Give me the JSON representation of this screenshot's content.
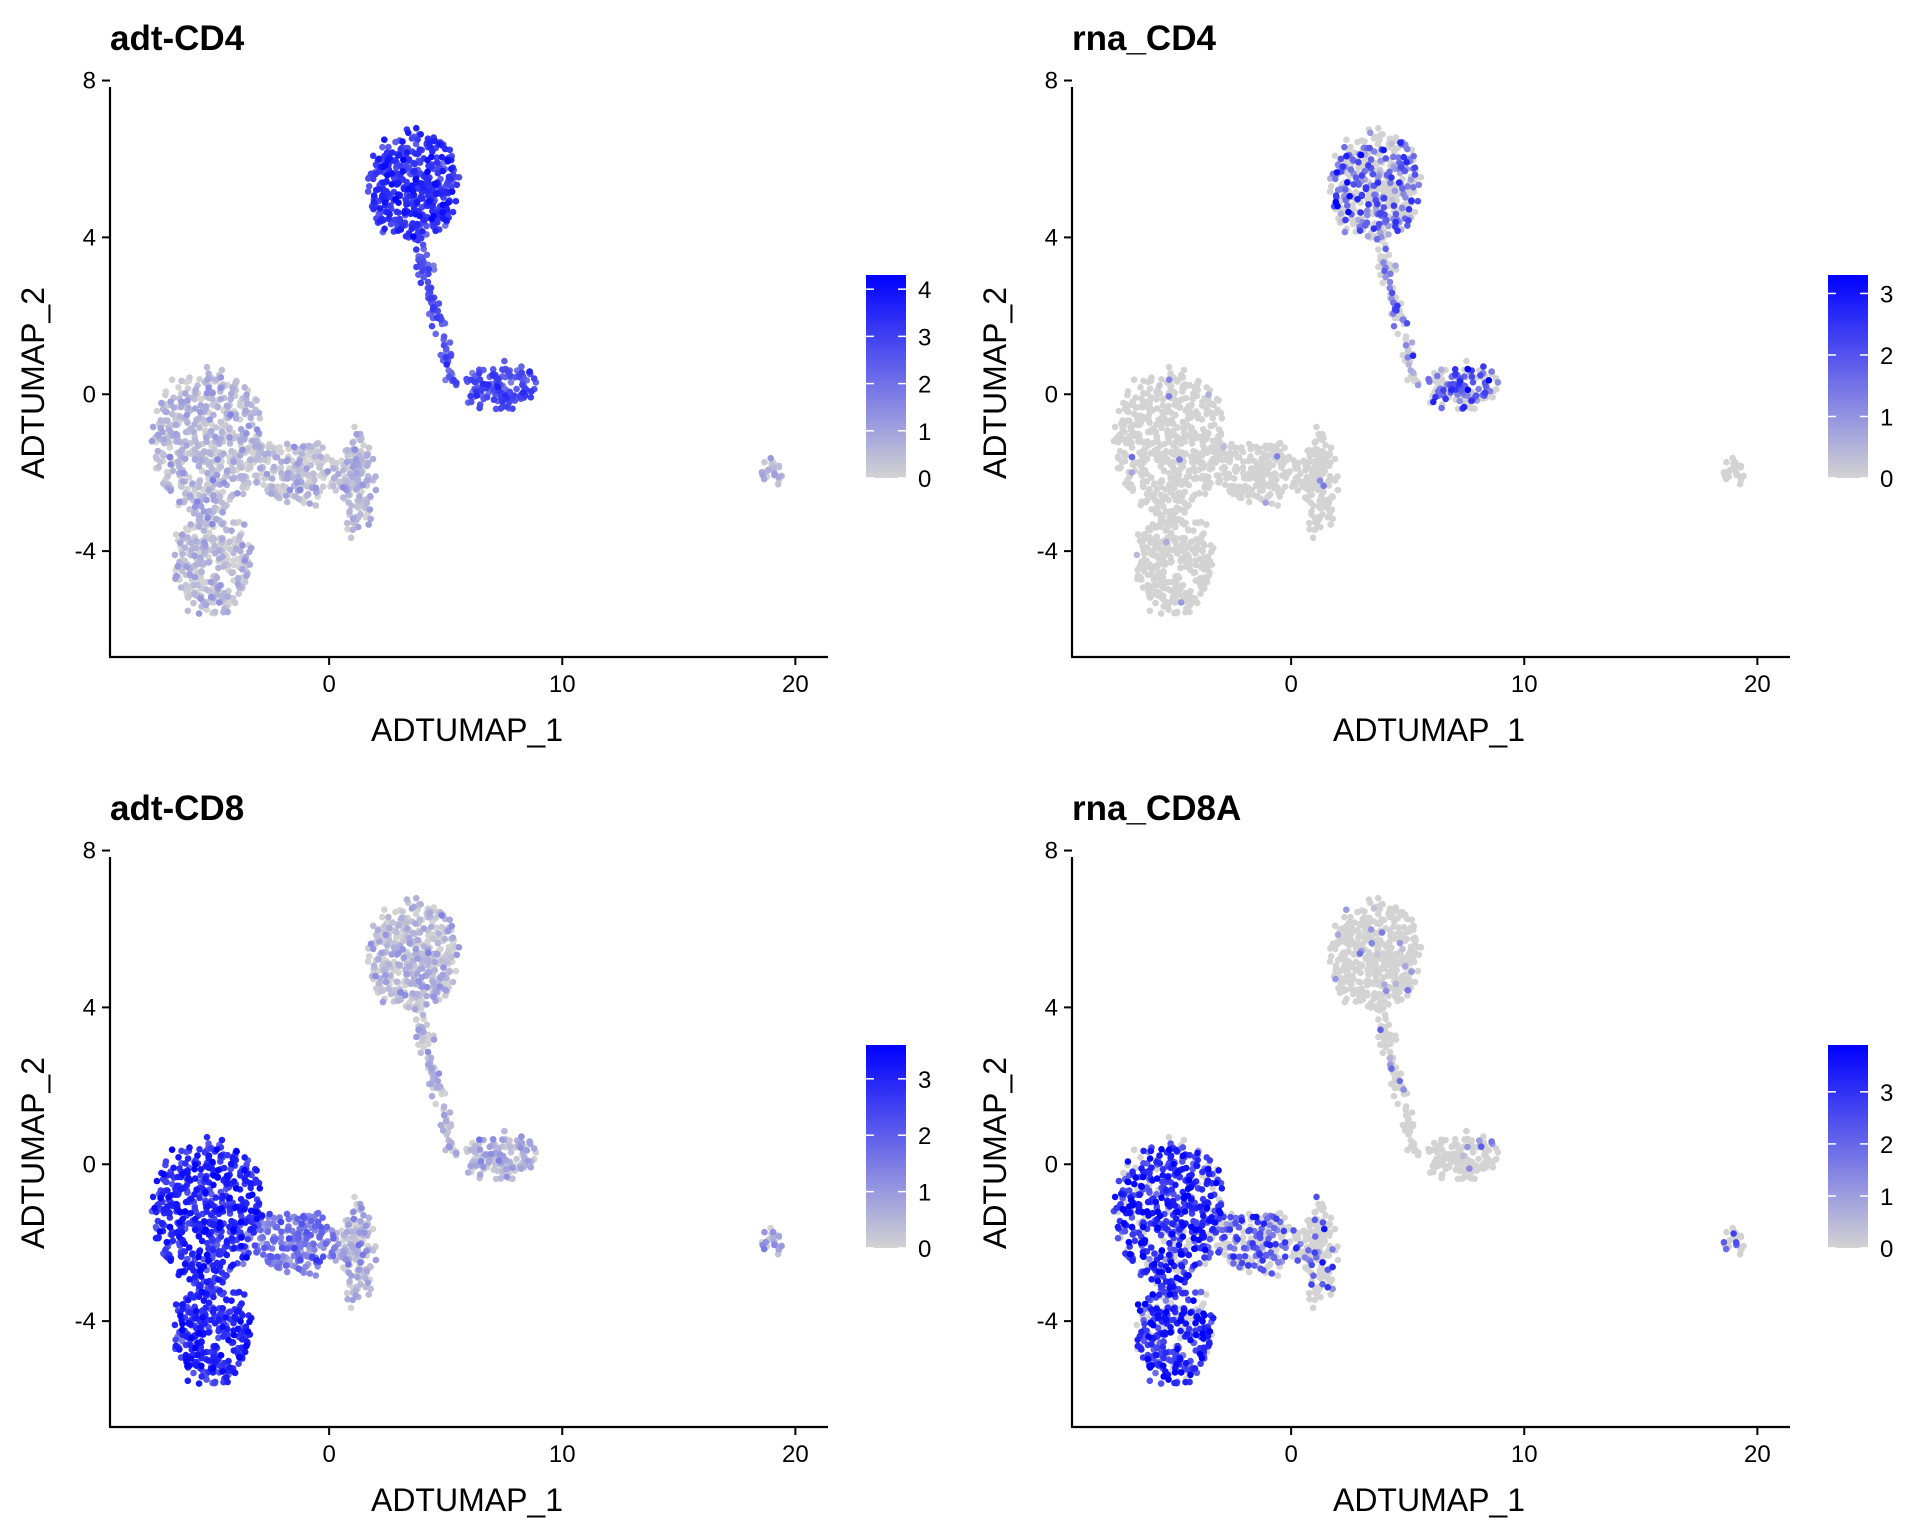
{
  "chart_data": [
    {
      "type": "scatter",
      "title": "adt-CD4",
      "xlabel": "ADTUMAP_1",
      "ylabel": "ADTUMAP_2",
      "xlim": [
        -9.4,
        21.4
      ],
      "ylim": [
        -6.7,
        8.6
      ],
      "xticks": [
        0,
        10,
        20
      ],
      "yticks": [
        -4,
        0,
        4,
        8
      ],
      "colors": {
        "low": "#d3d3d3",
        "high": "#0000ff"
      },
      "colorbar": {
        "min": 0,
        "max": 4.3,
        "ticks": [
          0,
          1,
          2,
          3,
          4
        ]
      },
      "pattern": "cd4_adt",
      "groups": [
        {
          "name": "upper-blob",
          "cx": 3.6,
          "cy": 5.3,
          "rx": 1.9,
          "ry": 1.35,
          "n": 420,
          "mean": 3.2
        },
        {
          "name": "stalk",
          "x0": 3.9,
          "y0": 3.6,
          "x1": 5.3,
          "y1": 0.4,
          "n": 90,
          "mean": 2.5
        },
        {
          "name": "right-lobe",
          "cx": 7.4,
          "cy": 0.2,
          "rx": 1.5,
          "ry": 0.5,
          "n": 140,
          "mean": 2.6
        },
        {
          "name": "left-upper",
          "cx": -5.2,
          "cy": -1.2,
          "rx": 2.3,
          "ry": 1.8,
          "n": 520,
          "mean": 0.35
        },
        {
          "name": "left-lower",
          "cx": -5.0,
          "cy": -4.3,
          "rx": 1.6,
          "ry": 1.3,
          "n": 300,
          "mean": 0.35
        },
        {
          "name": "mid-band",
          "cx": -1.5,
          "cy": -2.0,
          "rx": 2.0,
          "ry": 0.75,
          "n": 200,
          "mean": 0.3
        },
        {
          "name": "right-column",
          "cx": 1.2,
          "cy": -2.3,
          "rx": 0.75,
          "ry": 1.3,
          "n": 150,
          "mean": 0.45
        },
        {
          "name": "outlier-cluster",
          "cx": 19.0,
          "cy": -2.0,
          "rx": 0.4,
          "ry": 0.25,
          "n": 25,
          "mean": 0.6
        }
      ]
    },
    {
      "type": "scatter",
      "title": "rna_CD4",
      "xlabel": "ADTUMAP_1",
      "ylabel": "ADTUMAP_2",
      "xlim": [
        -9.4,
        21.4
      ],
      "ylim": [
        -6.7,
        8.6
      ],
      "xticks": [
        0,
        10,
        20
      ],
      "yticks": [
        -4,
        0,
        4,
        8
      ],
      "colors": {
        "low": "#d3d3d3",
        "high": "#0000ff"
      },
      "colorbar": {
        "min": 0,
        "max": 3.3,
        "ticks": [
          0,
          1,
          2,
          3
        ]
      },
      "pattern": "cd4_rna",
      "groups": [
        {
          "name": "upper-blob",
          "cx": 3.6,
          "cy": 5.3,
          "rx": 1.9,
          "ry": 1.35,
          "n": 420,
          "mean": 1.1,
          "frac": 0.45
        },
        {
          "name": "stalk",
          "x0": 3.9,
          "y0": 3.6,
          "x1": 5.3,
          "y1": 0.4,
          "n": 90,
          "mean": 0.9,
          "frac": 0.3
        },
        {
          "name": "right-lobe",
          "cx": 7.4,
          "cy": 0.2,
          "rx": 1.5,
          "ry": 0.5,
          "n": 140,
          "mean": 1.2,
          "frac": 0.5
        },
        {
          "name": "left-upper",
          "cx": -5.2,
          "cy": -1.2,
          "rx": 2.3,
          "ry": 1.8,
          "n": 520,
          "mean": 0.0,
          "frac": 0.01
        },
        {
          "name": "left-lower",
          "cx": -5.0,
          "cy": -4.3,
          "rx": 1.6,
          "ry": 1.3,
          "n": 300,
          "mean": 0.0,
          "frac": 0.01
        },
        {
          "name": "mid-band",
          "cx": -1.5,
          "cy": -2.0,
          "rx": 2.0,
          "ry": 0.75,
          "n": 200,
          "mean": 0.0,
          "frac": 0.01
        },
        {
          "name": "right-column",
          "cx": 1.2,
          "cy": -2.3,
          "rx": 0.75,
          "ry": 1.3,
          "n": 150,
          "mean": 0.0,
          "frac": 0.02
        },
        {
          "name": "outlier-cluster",
          "cx": 19.0,
          "cy": -2.0,
          "rx": 0.4,
          "ry": 0.25,
          "n": 25,
          "mean": 0.0,
          "frac": 0.0
        }
      ]
    },
    {
      "type": "scatter",
      "title": "adt-CD8",
      "xlabel": "ADTUMAP_1",
      "ylabel": "ADTUMAP_2",
      "xlim": [
        -9.4,
        21.4
      ],
      "ylim": [
        -6.7,
        8.6
      ],
      "xticks": [
        0,
        10,
        20
      ],
      "yticks": [
        -4,
        0,
        4,
        8
      ],
      "colors": {
        "low": "#d3d3d3",
        "high": "#0000ff"
      },
      "colorbar": {
        "min": 0,
        "max": 3.6,
        "ticks": [
          0,
          1,
          2,
          3
        ]
      },
      "pattern": "cd8_adt",
      "groups": [
        {
          "name": "upper-blob",
          "cx": 3.6,
          "cy": 5.3,
          "rx": 1.9,
          "ry": 1.35,
          "n": 420,
          "mean": 0.2
        },
        {
          "name": "stalk",
          "x0": 3.9,
          "y0": 3.6,
          "x1": 5.3,
          "y1": 0.4,
          "n": 90,
          "mean": 0.3
        },
        {
          "name": "right-lobe",
          "cx": 7.4,
          "cy": 0.2,
          "rx": 1.5,
          "ry": 0.5,
          "n": 140,
          "mean": 0.4
        },
        {
          "name": "left-upper",
          "cx": -5.2,
          "cy": -1.2,
          "rx": 2.3,
          "ry": 1.8,
          "n": 520,
          "mean": 2.8
        },
        {
          "name": "left-lower",
          "cx": -5.0,
          "cy": -4.3,
          "rx": 1.6,
          "ry": 1.3,
          "n": 300,
          "mean": 2.8
        },
        {
          "name": "mid-band",
          "cx": -1.5,
          "cy": -2.0,
          "rx": 2.0,
          "ry": 0.75,
          "n": 200,
          "mean": 1.4
        },
        {
          "name": "right-column",
          "cx": 1.2,
          "cy": -2.3,
          "rx": 0.75,
          "ry": 1.3,
          "n": 150,
          "mean": 0.35
        },
        {
          "name": "outlier-cluster",
          "cx": 19.0,
          "cy": -2.0,
          "rx": 0.4,
          "ry": 0.25,
          "n": 25,
          "mean": 0.5
        }
      ]
    },
    {
      "type": "scatter",
      "title": "rna_CD8A",
      "xlabel": "ADTUMAP_1",
      "ylabel": "ADTUMAP_2",
      "xlim": [
        -9.4,
        21.4
      ],
      "ylim": [
        -6.7,
        8.6
      ],
      "xticks": [
        0,
        10,
        20
      ],
      "yticks": [
        -4,
        0,
        4,
        8
      ],
      "colors": {
        "low": "#d3d3d3",
        "high": "#0000ff"
      },
      "colorbar": {
        "min": 0,
        "max": 3.9,
        "ticks": [
          0,
          1,
          2,
          3
        ]
      },
      "pattern": "cd8_rna",
      "groups": [
        {
          "name": "upper-blob",
          "cx": 3.6,
          "cy": 5.3,
          "rx": 1.9,
          "ry": 1.35,
          "n": 420,
          "mean": 0.8,
          "frac": 0.05
        },
        {
          "name": "stalk",
          "x0": 3.9,
          "y0": 3.6,
          "x1": 5.3,
          "y1": 0.4,
          "n": 90,
          "mean": 0.8,
          "frac": 0.05
        },
        {
          "name": "right-lobe",
          "cx": 7.4,
          "cy": 0.2,
          "rx": 1.5,
          "ry": 0.5,
          "n": 140,
          "mean": 1.0,
          "frac": 0.08
        },
        {
          "name": "left-upper",
          "cx": -5.2,
          "cy": -1.2,
          "rx": 2.3,
          "ry": 1.8,
          "n": 520,
          "mean": 2.6,
          "frac": 0.8
        },
        {
          "name": "left-lower",
          "cx": -5.0,
          "cy": -4.3,
          "rx": 1.6,
          "ry": 1.3,
          "n": 300,
          "mean": 2.6,
          "frac": 0.8
        },
        {
          "name": "mid-band",
          "cx": -1.5,
          "cy": -2.0,
          "rx": 2.0,
          "ry": 0.75,
          "n": 200,
          "mean": 1.8,
          "frac": 0.45
        },
        {
          "name": "right-column",
          "cx": 1.2,
          "cy": -2.3,
          "rx": 0.75,
          "ry": 1.3,
          "n": 150,
          "mean": 1.6,
          "frac": 0.15
        },
        {
          "name": "outlier-cluster",
          "cx": 19.0,
          "cy": -2.0,
          "rx": 0.4,
          "ry": 0.25,
          "n": 25,
          "mean": 1.5,
          "frac": 0.15
        }
      ]
    }
  ]
}
